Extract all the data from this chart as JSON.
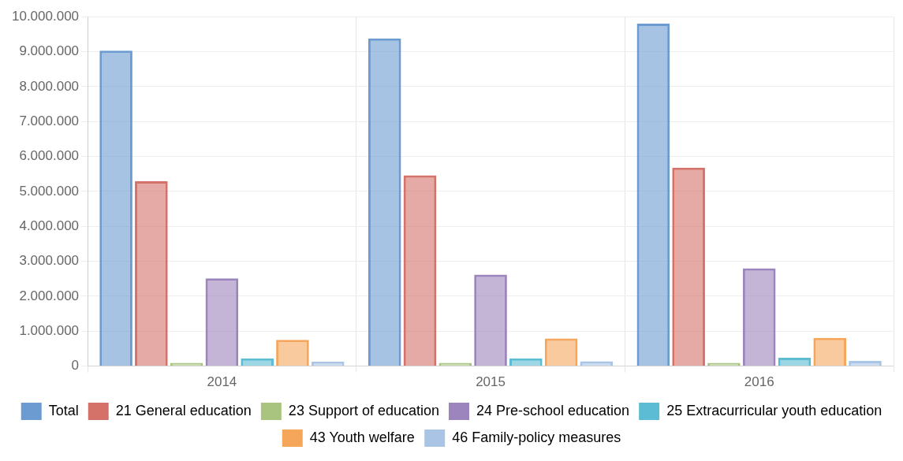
{
  "chart_data": {
    "type": "bar",
    "categories": [
      "2014",
      "2015",
      "2016"
    ],
    "series": [
      {
        "name": "Total",
        "color": "#6b9bd1",
        "values": [
          9030000,
          9380000,
          9800000
        ]
      },
      {
        "name": "21 General education",
        "color": "#d4726a",
        "values": [
          5290000,
          5460000,
          5680000
        ]
      },
      {
        "name": "23 Support of education",
        "color": "#a9c47f",
        "values": [
          90000,
          90000,
          90000
        ]
      },
      {
        "name": "24 Pre-school education",
        "color": "#9c84bd",
        "values": [
          2510000,
          2620000,
          2800000
        ]
      },
      {
        "name": "25 Extracurricular youth education",
        "color": "#5bbcd3",
        "values": [
          220000,
          220000,
          240000
        ]
      },
      {
        "name": "43 Youth welfare",
        "color": "#f5a65b",
        "values": [
          750000,
          790000,
          810000
        ]
      },
      {
        "name": "46 Family-policy measures",
        "color": "#aac4e6",
        "values": [
          130000,
          140000,
          150000
        ]
      }
    ],
    "ylim": [
      0,
      10000000
    ],
    "yticks": [
      {
        "value": 0,
        "label": "0"
      },
      {
        "value": 1000000,
        "label": "1.000.000"
      },
      {
        "value": 2000000,
        "label": "2.000.000"
      },
      {
        "value": 3000000,
        "label": "3.000.000"
      },
      {
        "value": 4000000,
        "label": "4.000.000"
      },
      {
        "value": 5000000,
        "label": "5.000.000"
      },
      {
        "value": 6000000,
        "label": "6.000.000"
      },
      {
        "value": 7000000,
        "label": "7.000.000"
      },
      {
        "value": 8000000,
        "label": "8.000.000"
      },
      {
        "value": 9000000,
        "label": "9.000.000"
      },
      {
        "value": 10000000,
        "label": "10.000.000"
      }
    ],
    "grid": true,
    "legend": "bottom"
  }
}
